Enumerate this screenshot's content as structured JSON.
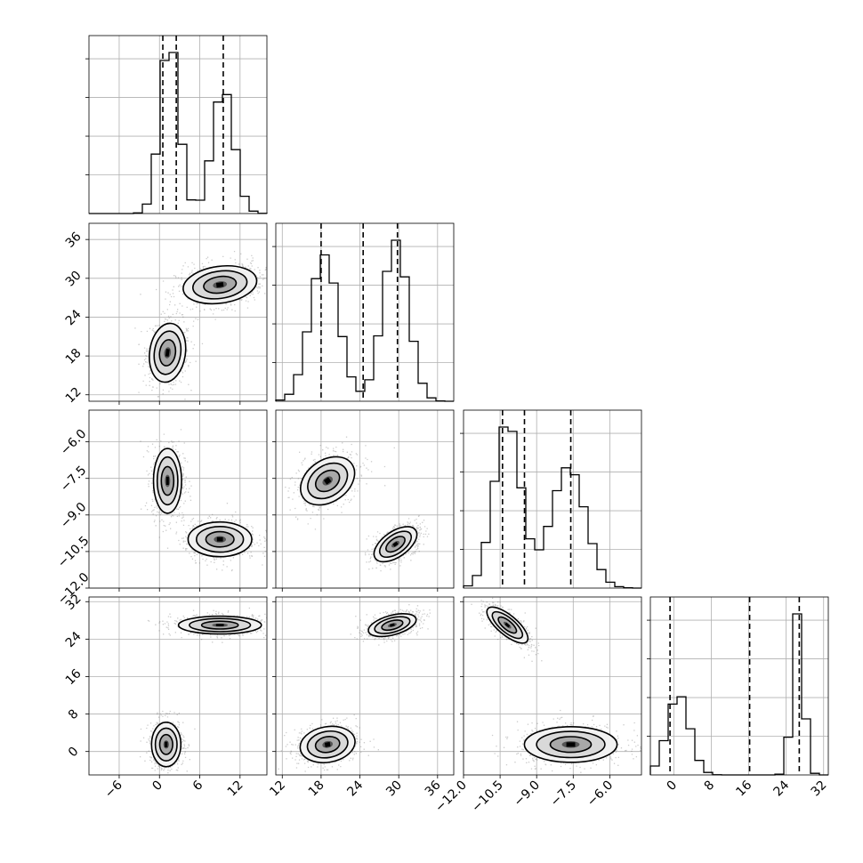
{
  "chart_data": {
    "type": "corner",
    "grid": true,
    "parameters": [
      {
        "range": [
          -10.5,
          16.0
        ],
        "ticks": [
          -6,
          0,
          6,
          12
        ],
        "tick_labels": [
          "−6",
          "0",
          "6",
          "12"
        ],
        "quantiles": [
          0.5,
          2.5,
          9.5
        ],
        "modes": [
          [
            1.5,
            1.4
          ],
          [
            9.5,
            1.6
          ]
        ],
        "weights": [
          0.55,
          0.45
        ]
      },
      {
        "range": [
          11.0,
          38.5
        ],
        "ticks": [
          12,
          18,
          24,
          30,
          36
        ],
        "tick_labels": [
          "12",
          "18",
          "24",
          "30",
          "36"
        ],
        "quantiles": [
          18.0,
          24.5,
          29.8
        ],
        "modes": [
          [
            18.5,
            2.2
          ],
          [
            29.5,
            2.0
          ]
        ],
        "weights": [
          0.5,
          0.5
        ]
      },
      {
        "range": [
          -12.0,
          -4.7
        ],
        "ticks": [
          -12.0,
          -10.5,
          -9.0,
          -7.5,
          -6.0
        ],
        "tick_labels": [
          "−12.0",
          "−10.5",
          "−9.0",
          "−7.5",
          "−6.0"
        ],
        "quantiles": [
          -10.4,
          -9.5,
          -7.6
        ],
        "modes": [
          [
            -10.2,
            0.55
          ],
          [
            -7.7,
            0.7
          ]
        ],
        "weights": [
          0.52,
          0.48
        ]
      },
      {
        "range": [
          -5.0,
          33.0
        ],
        "ticks": [
          0,
          8,
          16,
          24,
          32
        ],
        "tick_labels": [
          "0",
          "8",
          "16",
          "24",
          "32"
        ],
        "quantiles": [
          -0.8,
          16.2,
          26.8
        ],
        "modes": [
          [
            1.0,
            2.4
          ],
          [
            26.5,
            1.2
          ]
        ],
        "weights": [
          0.5,
          0.5
        ]
      }
    ],
    "pair_clusters": {
      "1-0": [
        {
          "cx": 1.2,
          "cy": 18.5,
          "rx": 2.8,
          "ry": 4.8,
          "rot": -8
        },
        {
          "cx": 9.0,
          "cy": 29.0,
          "rx": 5.8,
          "ry": 3.0,
          "rot": 8
        }
      ],
      "2-0": [
        {
          "cx": 1.2,
          "cy": -7.6,
          "rx": 2.2,
          "ry": 1.4,
          "rot": 0
        },
        {
          "cx": 9.0,
          "cy": -10.0,
          "rx": 5.0,
          "ry": 0.75,
          "rot": 0
        }
      ],
      "2-1": [
        {
          "cx": 19.0,
          "cy": -7.6,
          "rx": 4.8,
          "ry": 0.9,
          "rot": 35
        },
        {
          "cx": 29.5,
          "cy": -10.2,
          "rx": 4.0,
          "ry": 0.55,
          "rot": 35
        }
      ],
      "3-0": [
        {
          "cx": 9.0,
          "cy": 27.0,
          "rx": 6.5,
          "ry": 2.0,
          "rot": 0
        },
        {
          "cx": 1.0,
          "cy": 1.5,
          "rx": 2.3,
          "ry": 5.0,
          "rot": 0
        }
      ],
      "3-1": [
        {
          "cx": 29.0,
          "cy": 27.0,
          "rx": 4.0,
          "ry": 2.2,
          "rot": 15
        },
        {
          "cx": 19.0,
          "cy": 1.5,
          "rx": 4.5,
          "ry": 4.0,
          "rot": 10
        }
      ],
      "3-2": [
        {
          "cx": -10.2,
          "cy": 27.0,
          "rx": 1.1,
          "ry": 2.2,
          "rot": -40
        },
        {
          "cx": -7.6,
          "cy": 1.5,
          "rx": 2.0,
          "ry": 4.0,
          "rot": 0
        }
      ]
    }
  }
}
